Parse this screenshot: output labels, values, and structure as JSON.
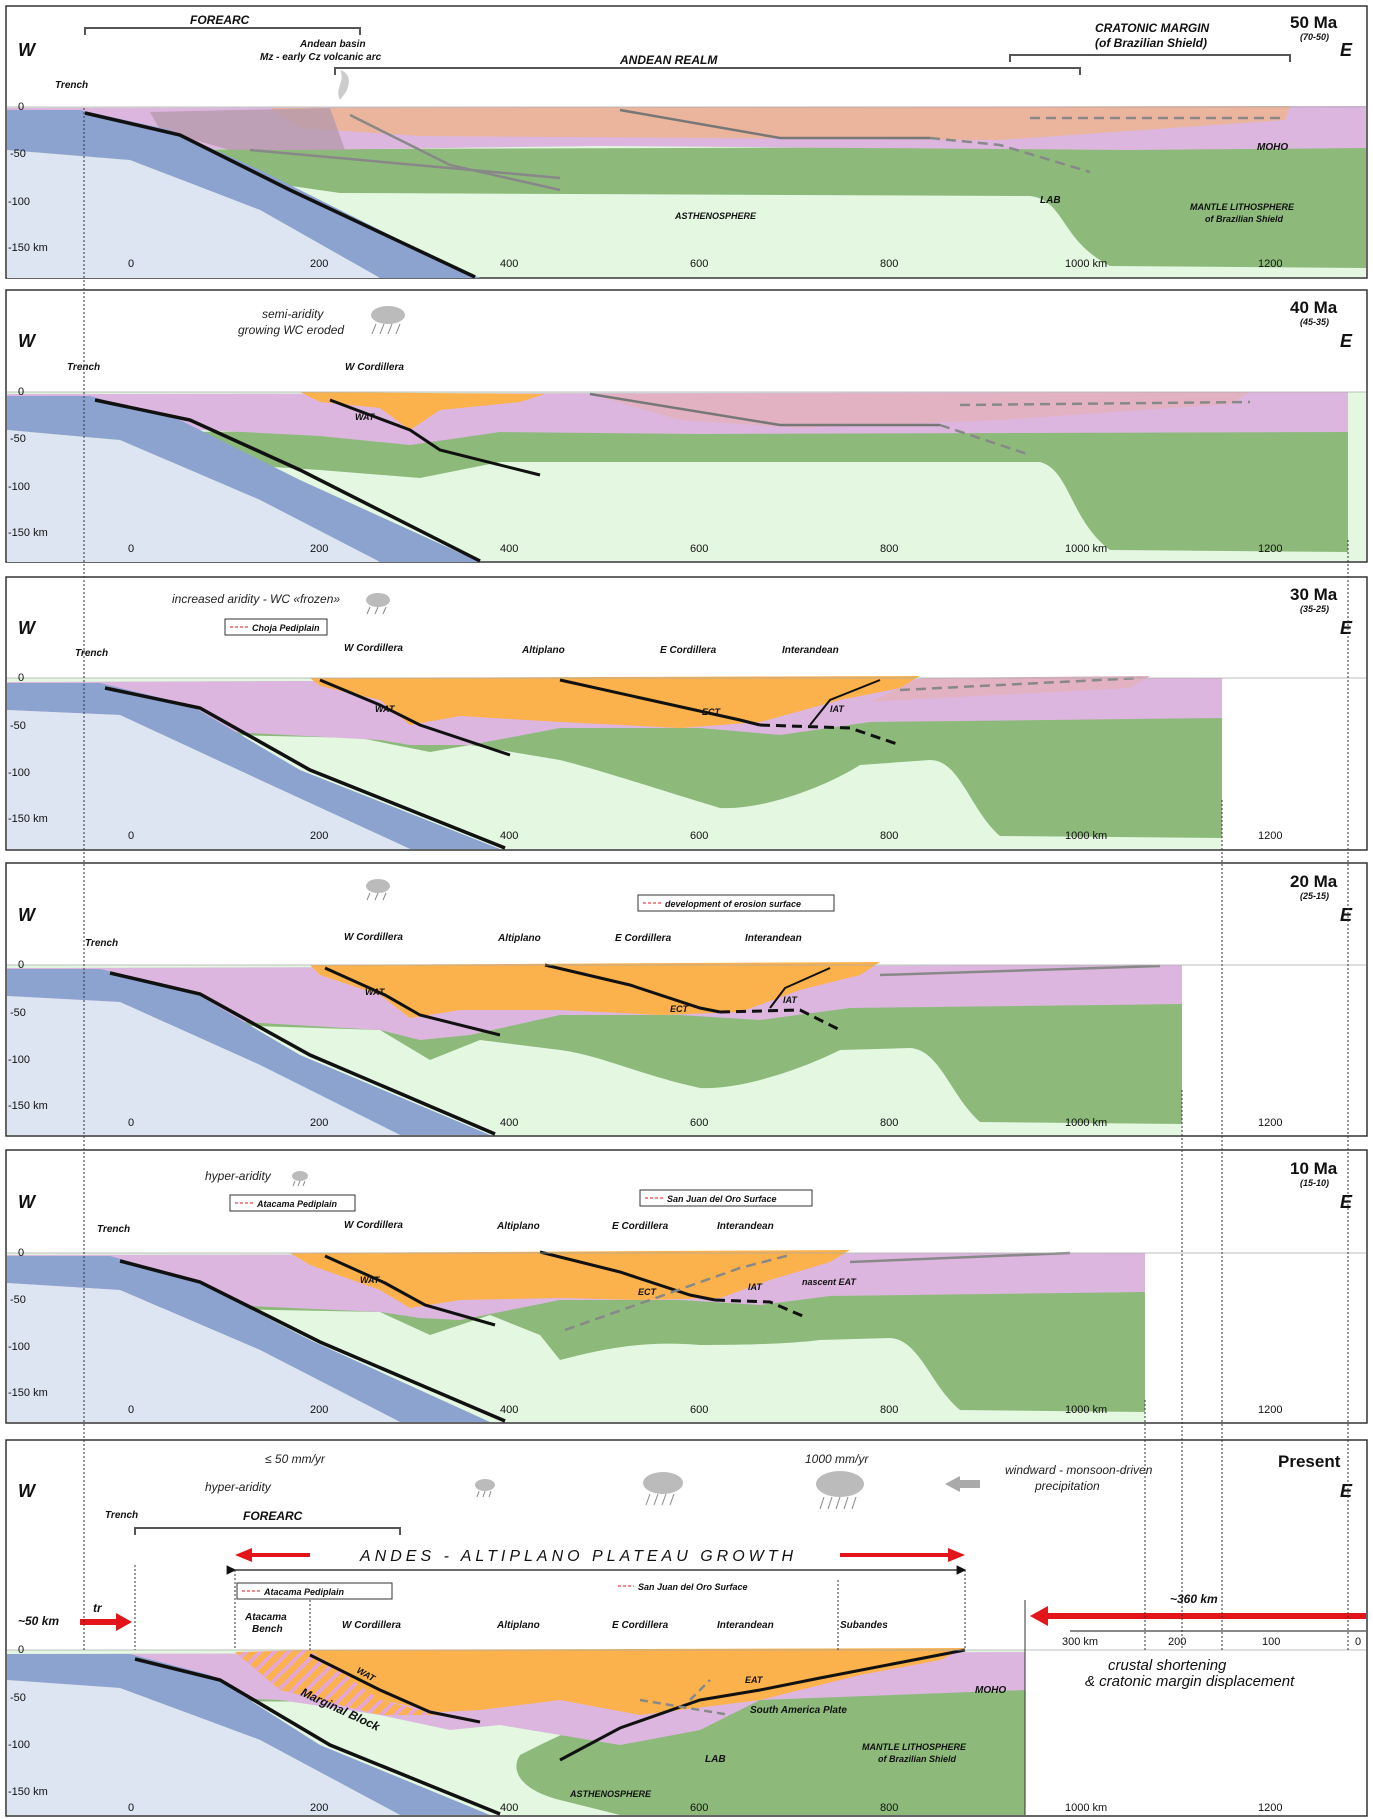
{
  "sides": {
    "west": "W",
    "east": "E"
  },
  "depth_ticks": [
    "0",
    "-50",
    "-100",
    "-150  km"
  ],
  "distance_ticks": [
    "0",
    "200",
    "400",
    "600",
    "800",
    "1000 km",
    "1200"
  ],
  "panels": [
    {
      "age": "50 Ma",
      "range": "(70-50)",
      "labels": {
        "trench": "Trench",
        "forearc": "FOREARC",
        "andean_basin": "Andean basin",
        "volcanic_arc": "Mz - early Cz volcanic arc",
        "andean_realm": "ANDEAN REALM",
        "cratonic_margin": "CRATONIC MARGIN",
        "brazilian_shield": "(of Brazilian Shield)",
        "moho": "MOHO",
        "lab": "LAB",
        "asthenosphere": "ASTHENOSPHERE",
        "mantle_lith_1": "MANTLE LITHOSPHERE",
        "mantle_lith_2": "of Brazilian Shield"
      }
    },
    {
      "age": "40 Ma",
      "range": "(45-35)",
      "labels": {
        "trench": "Trench",
        "climate_1": "semi-aridity",
        "climate_2": "growing WC eroded",
        "w_cordillera": "W Cordillera",
        "wat": "WAT"
      }
    },
    {
      "age": "30 Ma",
      "range": "(35-25)",
      "labels": {
        "trench": "Trench",
        "climate": "increased aridity - WC «frozen»",
        "legend": "Choja Pediplain",
        "w_cordillera": "W Cordillera",
        "altiplano": "Altiplano",
        "e_cordillera": "E Cordillera",
        "interandean": "Interandean",
        "wat": "WAT",
        "ect": "ECT",
        "iat": "IAT"
      }
    },
    {
      "age": "20 Ma",
      "range": "(25-15)",
      "labels": {
        "trench": "Trench",
        "legend": "development of erosion surface",
        "w_cordillera": "W Cordillera",
        "altiplano": "Altiplano",
        "e_cordillera": "E Cordillera",
        "interandean": "Interandean",
        "wat": "WAT",
        "ect": "ECT",
        "iat": "IAT"
      }
    },
    {
      "age": "10 Ma",
      "range": "(15-10)",
      "labels": {
        "trench": "Trench",
        "climate": "hyper-aridity",
        "legend_1": "Atacama Pediplain",
        "legend_2": "San Juan del Oro Surface",
        "w_cordillera": "W Cordillera",
        "altiplano": "Altiplano",
        "e_cordillera": "E Cordillera",
        "interandean": "Interandean",
        "wat": "WAT",
        "ect": "ECT",
        "iat": "IAT",
        "eat": "nascent EAT"
      }
    },
    {
      "age": "Present",
      "range": "",
      "labels": {
        "trench": "Trench",
        "forearc": "FOREARC",
        "rain_low": "≤ 50 mm/yr",
        "climate": "hyper-aridity",
        "rain_high": "1000 mm/yr",
        "windward_1": "windward - monsoon-driven",
        "windward_2": "precipitation",
        "growth": "ANDES - ALTIPLANO PLATEAU GROWTH",
        "legend_1": "Atacama Pediplain",
        "legend_2": "San Juan del Oro Surface",
        "trench_shift": "~50 km",
        "tr": "tr",
        "shortening": "~360 km",
        "atacama_bench_1": "Atacama",
        "atacama_bench_2": "Bench",
        "w_cordillera": "W Cordillera",
        "altiplano": "Altiplano",
        "e_cordillera": "E Cordillera",
        "interandean": "Interandean",
        "subandes": "Subandes",
        "marginal_block": "Marginal Block",
        "wat": "WAT",
        "eat": "EAT",
        "south_america_plate": "South America Plate",
        "moho": "MOHO",
        "lab": "LAB",
        "asthenosphere": "ASTHENOSPHERE",
        "mantle_lith_1": "MANTLE LITHOSPHERE",
        "mantle_lith_2": "of Brazilian Shield",
        "shortening_1": "crustal shortening",
        "shortening_2": "& cratonic margin displacement",
        "scale": [
          "300 km",
          "200",
          "100",
          "0"
        ]
      }
    }
  ],
  "colors": {
    "ocean_plate": "#8da3cf",
    "asthenosphere": "#e3f7e1",
    "mantle": "#8dba7b",
    "crust": "#dcb6df",
    "orogen": "#fbb24c",
    "old_crust": "#eab59c",
    "arrow": "#e3141a"
  }
}
